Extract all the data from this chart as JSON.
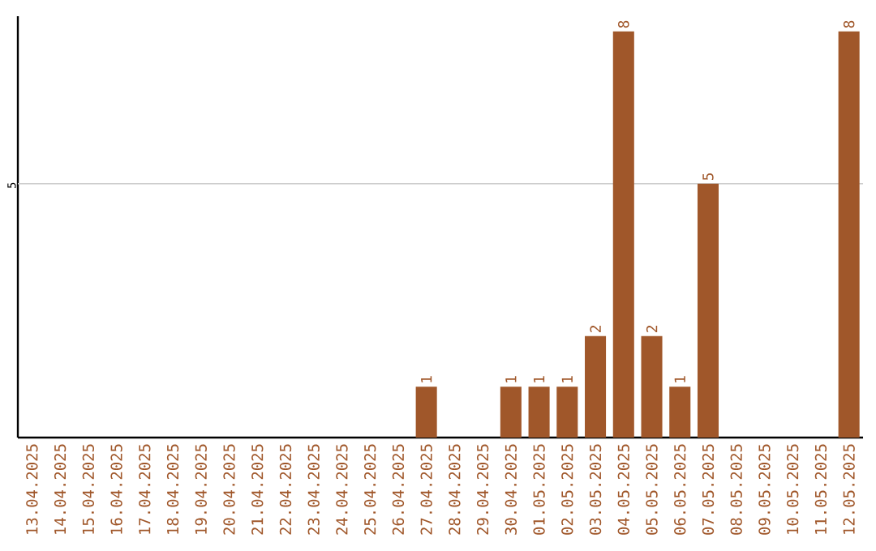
{
  "chart_data": {
    "type": "bar",
    "categories": [
      "13.04.2025",
      "14.04.2025",
      "15.04.2025",
      "16.04.2025",
      "17.04.2025",
      "18.04.2025",
      "19.04.2025",
      "20.04.2025",
      "21.04.2025",
      "22.04.2025",
      "23.04.2025",
      "24.04.2025",
      "25.04.2025",
      "26.04.2025",
      "27.04.2025",
      "28.04.2025",
      "29.04.2025",
      "30.04.2025",
      "01.05.2025",
      "02.05.2025",
      "03.05.2025",
      "04.05.2025",
      "05.05.2025",
      "06.05.2025",
      "07.05.2025",
      "08.05.2025",
      "09.05.2025",
      "10.05.2025",
      "11.05.2025",
      "12.05.2025"
    ],
    "values": [
      null,
      null,
      null,
      null,
      null,
      null,
      null,
      null,
      null,
      null,
      null,
      null,
      null,
      null,
      1,
      null,
      null,
      1,
      1,
      1,
      2,
      8,
      2,
      1,
      5,
      null,
      null,
      null,
      null,
      8
    ],
    "data_labels": true,
    "color": "#a0572a",
    "ylim": [
      0,
      8.3
    ],
    "ref_lines": [
      {
        "axis": "y",
        "value": 5,
        "label": "5",
        "color": "#cccccc"
      }
    ]
  }
}
